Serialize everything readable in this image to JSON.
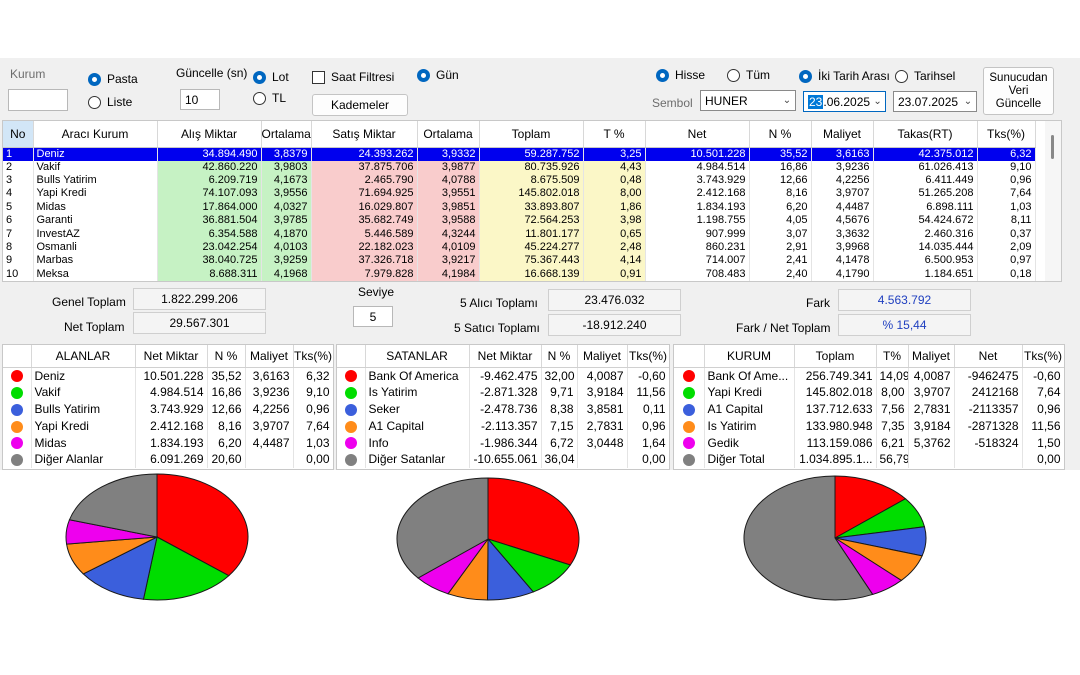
{
  "filters": {
    "kurum_label": "Kurum",
    "kurum_value": "",
    "pasta_label": "Pasta",
    "liste_label": "Liste",
    "guncelle_label": "Güncelle (sn)",
    "guncelle_value": "10",
    "lot_label": "Lot",
    "tl_label": "TL",
    "saat_filtresi_label": "Saat Filtresi",
    "kademeler_label": "Kademeler",
    "gun_label": "Gün",
    "hisse_label": "Hisse",
    "tum_label": "Tüm",
    "iki_tarih_label": "İki Tarih Arası",
    "tarihsel_label": "Tarihsel",
    "sembol_label": "Sembol",
    "sembol_value": "HUNER",
    "date_from_sel": "23",
    "date_from_rest": ".06.2025",
    "date_to": "23.07.2025",
    "sunucudan_label": "Sunucudan Veri Güncelle"
  },
  "grid": {
    "headers": [
      "No",
      "Aracı Kurum",
      "Alış Miktar",
      "Ortalama",
      "Satış Miktar",
      "Ortalama",
      "Toplam",
      "T %",
      "Net",
      "N %",
      "Maliyet",
      "Takas(RT)",
      "Tks(%)"
    ],
    "rows": [
      [
        "1",
        "Deniz",
        "34.894.490",
        "3,8379",
        "24.393.262",
        "3,9332",
        "59.287.752",
        "3,25",
        "10.501.228",
        "35,52",
        "3,6163",
        "42.375.012",
        "6,32"
      ],
      [
        "2",
        "Vakif",
        "42.860.220",
        "3,9803",
        "37.875.706",
        "3,9877",
        "80.735.926",
        "4,43",
        "4.984.514",
        "16,86",
        "3,9236",
        "61.026.413",
        "9,10"
      ],
      [
        "3",
        "Bulls Yatirim",
        "6.209.719",
        "4,1673",
        "2.465.790",
        "4,0788",
        "8.675.509",
        "0,48",
        "3.743.929",
        "12,66",
        "4,2256",
        "6.411.449",
        "0,96"
      ],
      [
        "4",
        "Yapi Kredi",
        "74.107.093",
        "3,9556",
        "71.694.925",
        "3,9551",
        "145.802.018",
        "8,00",
        "2.412.168",
        "8,16",
        "3,9707",
        "51.265.208",
        "7,64"
      ],
      [
        "5",
        "Midas",
        "17.864.000",
        "4,0327",
        "16.029.807",
        "3,9851",
        "33.893.807",
        "1,86",
        "1.834.193",
        "6,20",
        "4,4487",
        "6.898.111",
        "1,03"
      ],
      [
        "6",
        "Garanti",
        "36.881.504",
        "3,9785",
        "35.682.749",
        "3,9588",
        "72.564.253",
        "3,98",
        "1.198.755",
        "4,05",
        "4,5676",
        "54.424.672",
        "8,11"
      ],
      [
        "7",
        "InvestAZ",
        "6.354.588",
        "4,1870",
        "5.446.589",
        "4,3244",
        "11.801.177",
        "0,65",
        "907.999",
        "3,07",
        "3,3632",
        "2.460.316",
        "0,37"
      ],
      [
        "8",
        "Osmanli",
        "23.042.254",
        "4,0103",
        "22.182.023",
        "4,0109",
        "45.224.277",
        "2,48",
        "860.231",
        "2,91",
        "3,9968",
        "14.035.444",
        "2,09"
      ],
      [
        "9",
        "Marbas",
        "38.040.725",
        "3,9259",
        "37.326.718",
        "3,9217",
        "75.367.443",
        "4,14",
        "714.007",
        "2,41",
        "4,1478",
        "6.500.953",
        "0,97"
      ],
      [
        "10",
        "Meksa",
        "8.688.311",
        "4,1968",
        "7.979.828",
        "4,1984",
        "16.668.139",
        "0,91",
        "708.483",
        "2,40",
        "4,1790",
        "1.184.651",
        "0,18"
      ]
    ]
  },
  "totals": {
    "genel_toplam_label": "Genel Toplam",
    "genel_toplam_value": "1.822.299.206",
    "net_toplam_label": "Net Toplam",
    "net_toplam_value": "29.567.301",
    "seviye_label": "Seviye",
    "seviye_value": "5",
    "alici_label": "5  Alıcı Toplamı",
    "alici_value": "23.476.032",
    "satici_label": "5  Satıcı Toplamı",
    "satici_value": "-18.912.240",
    "fark_label": "Fark",
    "fark_value": "4.563.792",
    "fark_net_label": "Fark / Net Toplam",
    "fark_net_value": "% 15,44"
  },
  "colors": [
    "#ff0000",
    "#00dd00",
    "#3b5fdc",
    "#ff8c1a",
    "#ee00ee",
    "#808080"
  ],
  "alanlar": {
    "headers": [
      "ALANLAR",
      "Net Miktar",
      "N %",
      "Maliyet",
      "Tks(%)"
    ],
    "rows": [
      [
        "Deniz",
        "10.501.228",
        "35,52",
        "3,6163",
        "6,32"
      ],
      [
        "Vakif",
        "4.984.514",
        "16,86",
        "3,9236",
        "9,10"
      ],
      [
        "Bulls Yatirim",
        "3.743.929",
        "12,66",
        "4,2256",
        "0,96"
      ],
      [
        "Yapi Kredi",
        "2.412.168",
        "8,16",
        "3,9707",
        "7,64"
      ],
      [
        "Midas",
        "1.834.193",
        "6,20",
        "4,4487",
        "1,03"
      ],
      [
        "Diğer Alanlar",
        "6.091.269",
        "20,60",
        "",
        "0,00"
      ]
    ],
    "pie": [
      35.52,
      16.86,
      12.66,
      8.16,
      6.2,
      20.6
    ]
  },
  "satanlar": {
    "headers": [
      "SATANLAR",
      "Net Miktar",
      "N %",
      "Maliyet",
      "Tks(%)"
    ],
    "rows": [
      [
        "Bank Of America",
        "-9.462.475",
        "32,00",
        "4,0087",
        "-0,60"
      ],
      [
        "Is Yatirim",
        "-2.871.328",
        "9,71",
        "3,9184",
        "11,56"
      ],
      [
        "Seker",
        "-2.478.736",
        "8,38",
        "3,8581",
        "0,11"
      ],
      [
        "A1 Capital",
        "-2.113.357",
        "7,15",
        "2,7831",
        "0,96"
      ],
      [
        "Info",
        "-1.986.344",
        "6,72",
        "3,0448",
        "1,64"
      ],
      [
        "Diğer Satanlar",
        "-10.655.061",
        "36,04",
        "",
        "0,00"
      ]
    ],
    "pie": [
      32.0,
      9.71,
      8.38,
      7.15,
      6.72,
      36.04
    ]
  },
  "kurum": {
    "headers": [
      "KURUM",
      "Toplam",
      "T%",
      "Maliyet",
      "Net",
      "Tks(%)"
    ],
    "rows": [
      [
        "Bank Of Ame...",
        "256.749.341",
        "14,09",
        "4,0087",
        "-9462475",
        "-0,60"
      ],
      [
        "Yapi Kredi",
        "145.802.018",
        "8,00",
        "3,9707",
        "2412168",
        "7,64"
      ],
      [
        "A1 Capital",
        "137.712.633",
        "7,56",
        "2,7831",
        "-2113357",
        "0,96"
      ],
      [
        "Is Yatirim",
        "133.980.948",
        "7,35",
        "3,9184",
        "-2871328",
        "11,56"
      ],
      [
        "Gedik",
        "113.159.086",
        "6,21",
        "5,3762",
        "-518324",
        "1,50"
      ],
      [
        "Diğer Total",
        "1.034.895.1...",
        "56,79",
        "",
        "",
        "0,00"
      ]
    ],
    "pie": [
      14.09,
      8.0,
      7.56,
      7.35,
      6.21,
      56.79
    ]
  }
}
